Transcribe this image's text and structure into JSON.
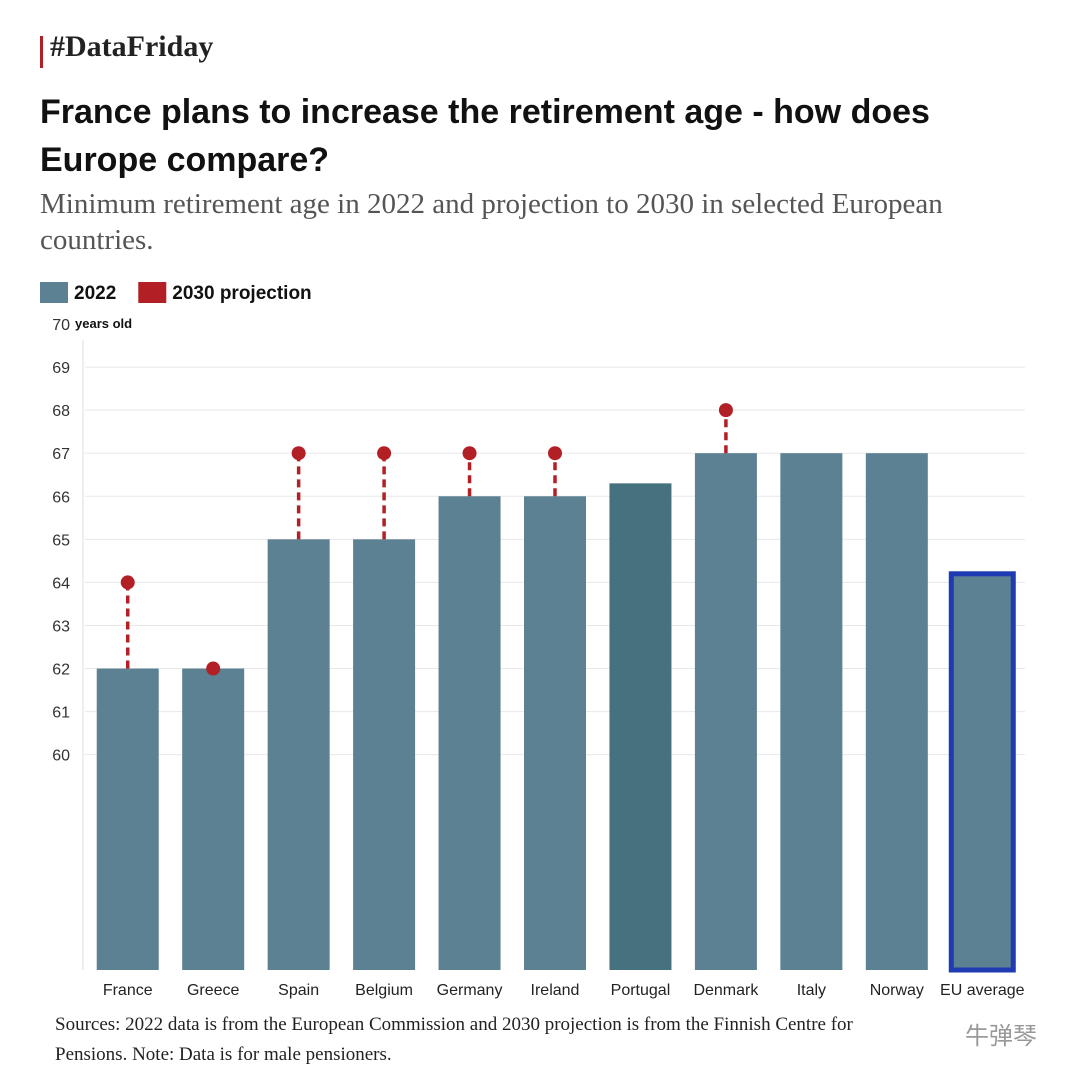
{
  "header": "#DataFriday",
  "chart_data": {
    "type": "bar",
    "title": "France plans to increase the retirement age - how does Europe compare?",
    "subtitle": "Minimum retirement age in 2022 and projection to 2030 in selected European countries.",
    "y_unit": "years old",
    "categories": [
      "France",
      "Greece",
      "Spain",
      "Belgium",
      "Germany",
      "Ireland",
      "Portugal",
      "Denmark",
      "Italy",
      "Norway",
      "EU average"
    ],
    "series": [
      {
        "name": "2022",
        "color": "#5b8192",
        "values": [
          62,
          62,
          65,
          65,
          66,
          66,
          66.3,
          67,
          67,
          67,
          64.2
        ]
      },
      {
        "name": "2030 projection",
        "color": "#b22026",
        "values": [
          64,
          62,
          67,
          67,
          67,
          67,
          null,
          68,
          null,
          null,
          null
        ]
      }
    ],
    "bar_colors": [
      "#5b8192",
      "#5b8192",
      "#5b8192",
      "#5b8192",
      "#5b8192",
      "#5b8192",
      "#46717f",
      "#5b8192",
      "#5b8192",
      "#5b8192",
      "#5b8192"
    ],
    "bar_outlines": [
      null,
      null,
      null,
      null,
      null,
      null,
      null,
      null,
      null,
      null,
      "#1f3bb3"
    ],
    "ylim": [
      55,
      70
    ],
    "yticks": [
      60,
      61,
      62,
      63,
      64,
      65,
      66,
      67,
      68,
      69,
      70
    ],
    "grid": true,
    "legend": "top-left"
  },
  "footer": {
    "sources": "Sources: 2022 data is from the European Commission and 2030 projection is from the Finnish Centre for Pensions. Note: Data is for male pensioners.",
    "watermark": "牛弹琴"
  }
}
